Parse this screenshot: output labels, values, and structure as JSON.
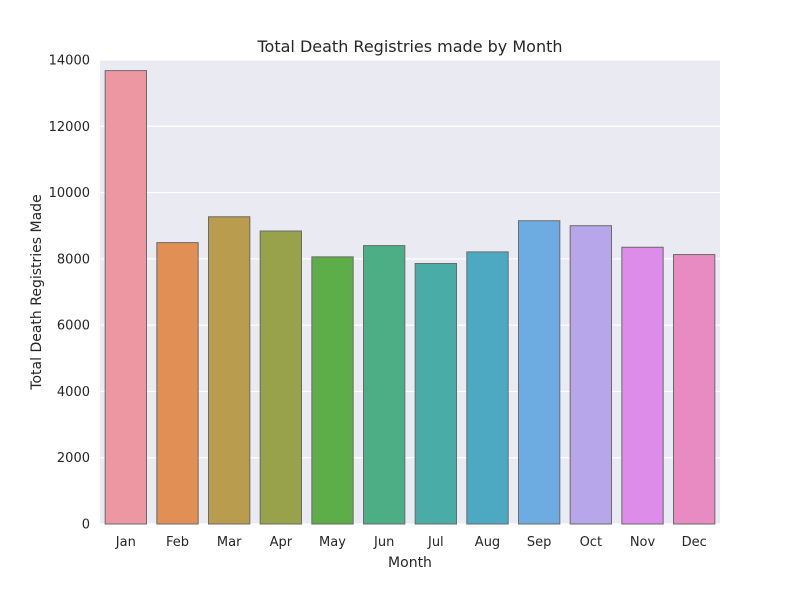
{
  "chart_data": {
    "type": "bar",
    "title": "Total Death Registries made by Month",
    "xlabel": "Month",
    "ylabel": "Total Death Registries Made",
    "categories": [
      "Jan",
      "Feb",
      "Mar",
      "Apr",
      "May",
      "Jun",
      "Jul",
      "Aug",
      "Sep",
      "Oct",
      "Nov",
      "Dec"
    ],
    "values": [
      13680,
      8490,
      9270,
      8840,
      8060,
      8400,
      7860,
      8210,
      9150,
      9000,
      8350,
      8130
    ],
    "ylim": [
      0,
      14000
    ],
    "yticks": [
      0,
      2000,
      4000,
      6000,
      8000,
      10000,
      12000,
      14000
    ],
    "grid": true,
    "colors": [
      "#ec97a2",
      "#e28f55",
      "#b99c4d",
      "#97a24b",
      "#5dae49",
      "#4bae84",
      "#4aaca7",
      "#4ca9c1",
      "#6dace0",
      "#b7a6ea",
      "#dd8de9",
      "#e88bc3"
    ],
    "background": "#eaeaf2",
    "gridColor": "#ffffff"
  }
}
